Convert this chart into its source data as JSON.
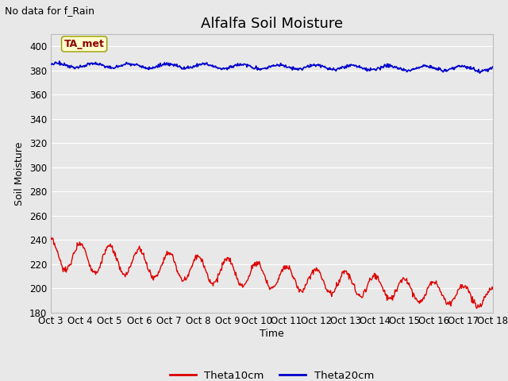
{
  "title": "Alfalfa Soil Moisture",
  "subtitle": "No data for f_Rain",
  "ylabel": "Soil Moisture",
  "xlabel": "Time",
  "annotation": "TA_met",
  "xlim": [
    0,
    15
  ],
  "ylim": [
    180,
    410
  ],
  "yticks": [
    180,
    200,
    220,
    240,
    260,
    280,
    300,
    320,
    340,
    360,
    380,
    400
  ],
  "xtick_labels": [
    "Oct 3",
    "Oct 4",
    "Oct 5",
    "Oct 6",
    "Oct 7",
    "Oct 8",
    "Oct 9",
    "Oct 10",
    "Oct 11",
    "Oct 12",
    "Oct 13",
    "Oct 14",
    "Oct 15",
    "Oct 16",
    "Oct 17",
    "Oct 18"
  ],
  "theta10_color": "#dd0000",
  "theta20_color": "#0000cc",
  "plot_bg_color": "#e8e8e8",
  "fig_bg_color": "#e8e8e8",
  "grid_color": "#ffffff",
  "legend_entries": [
    "Theta10cm",
    "Theta20cm"
  ],
  "title_fontsize": 13,
  "label_fontsize": 9,
  "tick_fontsize": 8.5,
  "subtitle_fontsize": 9,
  "annotation_fontsize": 9
}
